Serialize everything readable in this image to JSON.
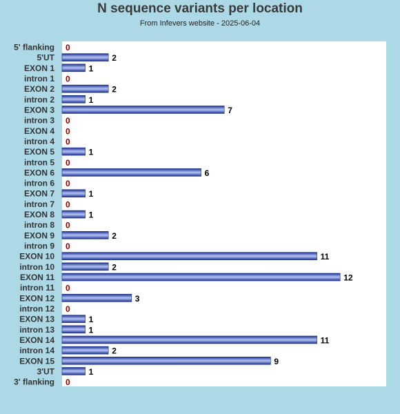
{
  "chart_data": {
    "type": "bar",
    "orientation": "horizontal",
    "title": "N sequence variants per location",
    "subtitle": "From Infevers website - 2025-06-04",
    "categories": [
      "5' flanking",
      "5'UT",
      "EXON 1",
      "intron 1",
      "EXON 2",
      "intron 2",
      "EXON 3",
      "intron 3",
      "EXON 4",
      "intron 4",
      "EXON 5",
      "intron 5",
      "EXON 6",
      "intron 6",
      "EXON 7",
      "intron 7",
      "EXON 8",
      "intron 8",
      "EXON 9",
      "intron 9",
      "EXON 10",
      "intron 10",
      "EXON 11",
      "intron 11",
      "EXON 12",
      "intron 12",
      "EXON 13",
      "intron 13",
      "EXON 14",
      "intron 14",
      "EXON 15",
      "3'UT",
      "3' flanking"
    ],
    "values": [
      0,
      2,
      1,
      0,
      2,
      1,
      7,
      0,
      0,
      0,
      1,
      0,
      6,
      0,
      1,
      0,
      1,
      0,
      2,
      0,
      11,
      2,
      12,
      0,
      3,
      0,
      1,
      1,
      11,
      2,
      9,
      1,
      0
    ],
    "xlim": [
      0,
      14
    ],
    "grid": false,
    "colors": {
      "bar": "#1a2f8c",
      "bar_highlight": "#a9b8ee",
      "label": "#000000",
      "zero_label": "#8b0000",
      "plot_bg": "#ffffff",
      "page_bg": "#add8e6"
    }
  }
}
